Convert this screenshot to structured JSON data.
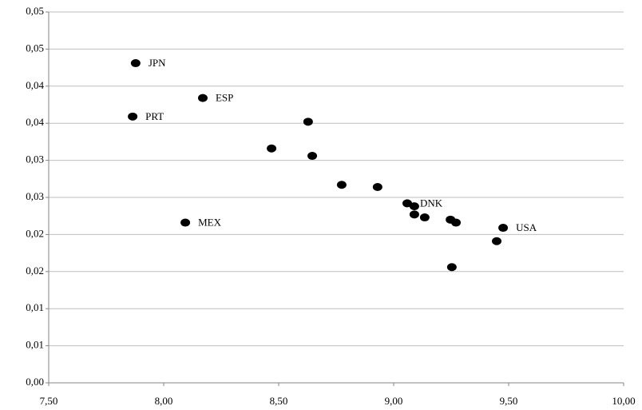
{
  "chart_data": {
    "type": "scatter",
    "x": [
      7.878,
      8.17,
      7.865,
      8.628,
      8.469,
      8.646,
      8.774,
      8.93,
      9.059,
      9.09,
      9.09,
      9.135,
      9.247,
      9.271,
      9.476,
      9.448,
      9.253,
      8.094
    ],
    "values": [
      0.0431,
      0.0384,
      0.0359,
      0.0352,
      0.0316,
      0.0306,
      0.0267,
      0.0264,
      0.0242,
      0.0238,
      0.0227,
      0.0223,
      0.022,
      0.0216,
      0.0209,
      0.0191,
      0.0156,
      0.0216
    ],
    "point_labels": [
      "JPN",
      "ESP",
      "PRT",
      null,
      null,
      null,
      null,
      null,
      "DNK",
      null,
      null,
      null,
      null,
      null,
      "USA",
      null,
      null,
      "MEX"
    ],
    "color": "#000000",
    "xlim": [
      7.5,
      10.0
    ],
    "xticks": [
      {
        "value": 7.5,
        "label": "7,50"
      },
      {
        "value": 8.0,
        "label": "8,00"
      },
      {
        "value": 8.5,
        "label": "8,50"
      },
      {
        "value": 9.0,
        "label": "9,00"
      },
      {
        "value": 9.5,
        "label": "9,50"
      },
      {
        "value": 10.0,
        "label": "10,00"
      }
    ],
    "ylim": [
      0,
      0.05
    ],
    "yticks": [
      {
        "value": 0,
        "label": "0,00"
      },
      {
        "value": 0.005,
        "label": "0,01"
      },
      {
        "value": 0.01,
        "label": "0,01"
      },
      {
        "value": 0.015,
        "label": "0,02"
      },
      {
        "value": 0.02,
        "label": "0,02"
      },
      {
        "value": 0.025,
        "label": "0,03"
      },
      {
        "value": 0.03,
        "label": "0,03"
      },
      {
        "value": 0.035,
        "label": "0,04"
      },
      {
        "value": 0.04,
        "label": "0,04"
      },
      {
        "value": 0.045,
        "label": "0,05"
      },
      {
        "value": 0.05,
        "label": "0,05"
      }
    ],
    "grid": true
  }
}
